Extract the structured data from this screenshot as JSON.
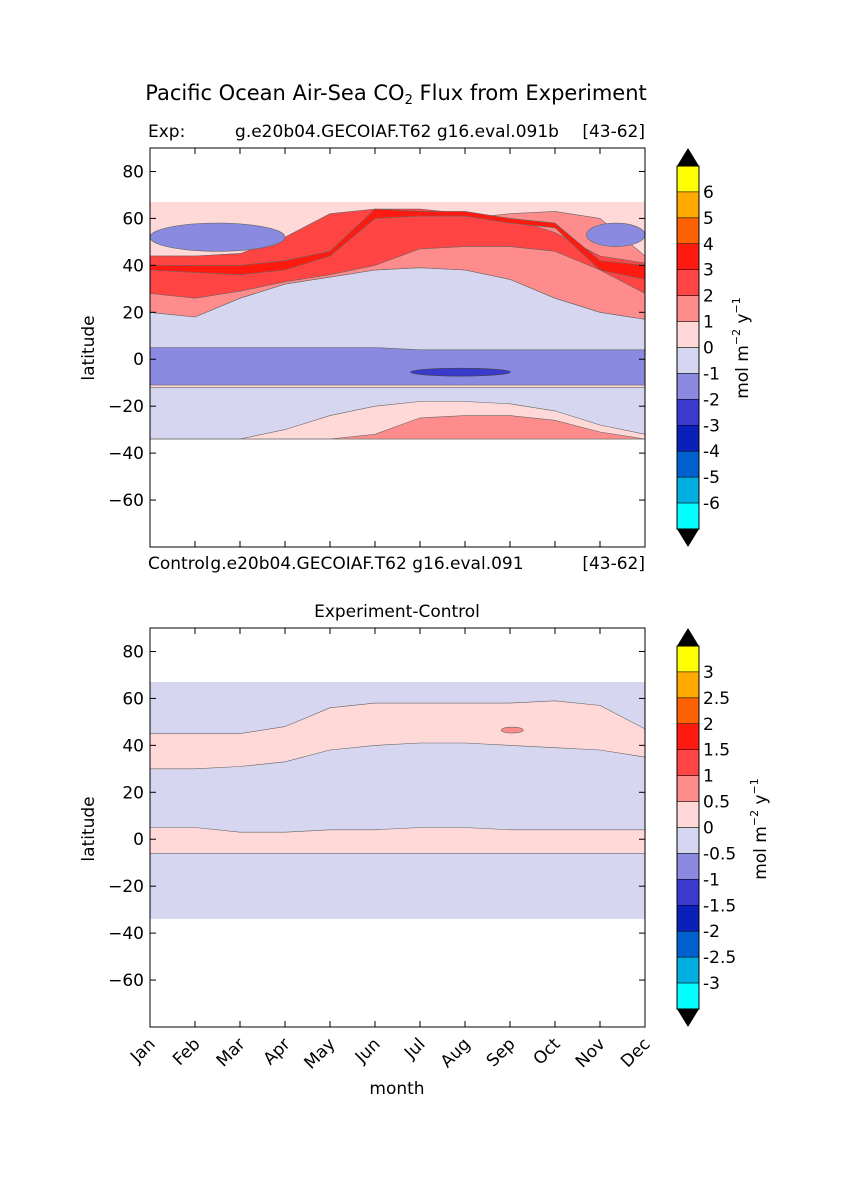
{
  "figure": {
    "title": "Pacific Ocean Air-Sea CO",
    "title_sub": "2",
    "title_suffix": " Flux from Experiment"
  },
  "chart_data": [
    {
      "type": "contour",
      "title_left": "Exp:",
      "title_center": "g.e20b04.GECOIAF.T62 g16.eval.091b",
      "title_right": "[43-62]",
      "xlabel": "",
      "ylabel": "latitude",
      "ylim": [
        -80,
        90
      ],
      "yticks": [
        80,
        60,
        40,
        20,
        0,
        -20,
        -40,
        -60
      ],
      "ytick_labels": [
        "80",
        "60",
        "40",
        "20",
        "0",
        "−20",
        "−40",
        "−60"
      ],
      "xlim": [
        0,
        11
      ],
      "colorbar": {
        "label": "mol m",
        "label_sup1": "−2",
        "label_mid": " y",
        "label_sup2": "−1",
        "tick_labels": [
          "6",
          "5",
          "4",
          "3",
          "2",
          "1",
          "0",
          "-1",
          "-2",
          "-3",
          "-4",
          "-5",
          "-6"
        ],
        "colors": [
          "#ffff00",
          "#ffaa00",
          "#ff6000",
          "#ff1a10",
          "#ff4444",
          "#ff8c8c",
          "#ffd8d8",
          "#d6d6f0",
          "#8a8ae0",
          "#3a3acc",
          "#0a20b8",
          "#0060d0",
          "#00aee0",
          "#00ffff"
        ],
        "extend_color": "#000000"
      },
      "data_extent_lat": [
        -34,
        67
      ],
      "bands": [
        {
          "level": "0 to 1",
          "color": "#ffd8d8",
          "lat": [
            67,
            60,
            60,
            62,
            62,
            60,
            60,
            62,
            64,
            67
          ],
          "months": [
            0,
            1,
            2,
            3,
            4,
            5,
            6,
            7,
            8,
            11
          ]
        },
        {
          "level": "-1 to 0",
          "color": "#d6d6f0",
          "lat_north": [
            20,
            18,
            26,
            32,
            35,
            38,
            39,
            38,
            34,
            26,
            20,
            17
          ],
          "lat_south": [
            4,
            4,
            4,
            4,
            4,
            4,
            4,
            4,
            4,
            4,
            4,
            4
          ]
        },
        {
          "level": "-2 to -1",
          "color": "#8a8ae0",
          "lat_north": [
            5,
            5,
            5,
            5,
            5,
            5,
            4,
            4,
            4,
            4,
            4,
            4
          ],
          "lat_south": [
            -11,
            -11,
            -11,
            -11,
            -11,
            -11,
            -11,
            -11,
            -11,
            -11,
            -11,
            -11
          ]
        },
        {
          "level": "-1 to 0",
          "color": "#d6d6f0",
          "lat_north": [
            -12,
            -12,
            -12,
            -12,
            -12,
            -12,
            -12,
            -12,
            -12,
            -12,
            -12,
            -12
          ],
          "lat_south": [
            -34,
            -34,
            -34,
            -34,
            -34,
            -34,
            -34,
            -34,
            -34,
            -34,
            -34,
            -34
          ]
        },
        {
          "level": "0 to 1",
          "color": "#ffd8d8",
          "lat_north": [
            -34,
            -34,
            -34,
            -30,
            -24,
            -20,
            -18,
            -18,
            -19,
            -22,
            -28,
            -32
          ],
          "lat_south": [
            -34,
            -34,
            -34,
            -34,
            -34,
            -34,
            -34,
            -34,
            -34,
            -34,
            -34,
            -34
          ]
        },
        {
          "level": "1 to 2",
          "color": "#ff8c8c",
          "lat_north": [
            -34,
            -34,
            -34,
            -34,
            -34,
            -32,
            -25,
            -24,
            -24,
            -26,
            -31,
            -34
          ],
          "lat_south": [
            -34,
            -34,
            -34,
            -34,
            -34,
            -34,
            -34,
            -34,
            -34,
            -34,
            -34,
            -34
          ]
        }
      ]
    },
    {
      "type": "contour",
      "title_left": "Control",
      "title_center": "g.e20b04.GECOIAF.T62 g16.eval.091",
      "title_right": "[43-62]",
      "note": "second panel title shown under first panel"
    },
    {
      "type": "contour",
      "title_center": "Experiment-Control",
      "xlabel": "month",
      "ylabel": "latitude",
      "ylim": [
        -80,
        90
      ],
      "yticks": [
        80,
        60,
        40,
        20,
        0,
        -20,
        -40,
        -60
      ],
      "ytick_labels": [
        "80",
        "60",
        "40",
        "20",
        "0",
        "−20",
        "−40",
        "−60"
      ],
      "xticks": [
        "Jan",
        "Feb",
        "Mar",
        "Apr",
        "May",
        "Jun",
        "Jul",
        "Aug",
        "Sep",
        "Oct",
        "Nov",
        "Dec"
      ],
      "colorbar": {
        "label": "mol m",
        "label_sup1": "−2",
        "label_mid": " y",
        "label_sup2": "−1",
        "tick_labels": [
          "3",
          "2.5",
          "2",
          "1.5",
          "1",
          "0.5",
          "0",
          "-0.5",
          "-1",
          "-1.5",
          "-2",
          "-2.5",
          "-3"
        ],
        "colors": [
          "#ffff00",
          "#ffaa00",
          "#ff6000",
          "#ff1a10",
          "#ff4444",
          "#ff8c8c",
          "#ffd8d8",
          "#d6d6f0",
          "#8a8ae0",
          "#3a3acc",
          "#0a20b8",
          "#0060d0",
          "#00aee0",
          "#00ffff"
        ],
        "extend_color": "#000000"
      },
      "data_extent_lat": [
        -34,
        67
      ],
      "bands": [
        {
          "level": "0 to 0.5",
          "color": "#ffd8d8",
          "lat_north": [
            45,
            45,
            45,
            48,
            56,
            58,
            58,
            58,
            58,
            59,
            57,
            47
          ],
          "lat_south": [
            30,
            30,
            31,
            33,
            38,
            40,
            41,
            41,
            40,
            39,
            38,
            35
          ]
        },
        {
          "level": "0 to 0.5",
          "color": "#ffd8d8",
          "lat_north": [
            5,
            5,
            3,
            3,
            4,
            4,
            5,
            5,
            4,
            4,
            4,
            4
          ],
          "lat_south": [
            -6,
            -6,
            -6,
            -6,
            -6,
            -6,
            -6,
            -6,
            -6,
            -6,
            -6,
            -6
          ]
        }
      ]
    }
  ]
}
